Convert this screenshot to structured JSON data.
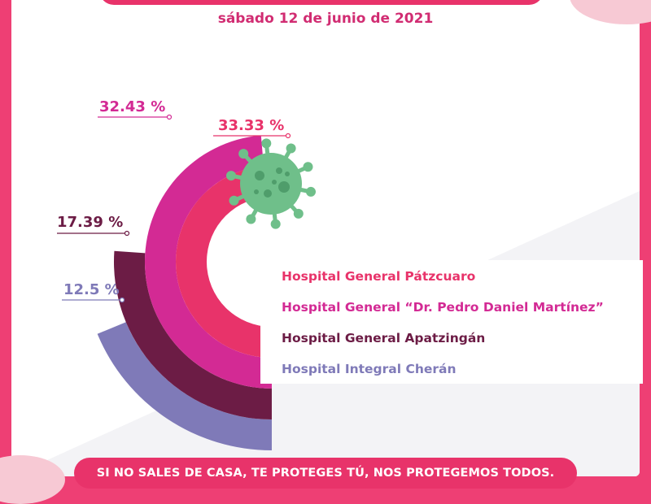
{
  "header": {
    "subtitle": "sábado 12 de junio de 2021"
  },
  "chart_data": {
    "type": "radial-bar",
    "series": [
      {
        "name": "Hospital General Pátzcuaro",
        "value": 33.33,
        "label": "33.33 %",
        "color": "#e8336a"
      },
      {
        "name": "Hospital General “Dr. Pedro Daniel Martínez”",
        "value": 32.43,
        "label": "32.43 %",
        "color": "#d32a94"
      },
      {
        "name": "Hospital General Apatzingán",
        "value": 17.39,
        "label": "17.39 %",
        "color": "#6c1c45"
      },
      {
        "name": "Hospital Integral Cherán",
        "value": 12.5,
        "label": "12.5 %",
        "color": "#7f7ab8"
      }
    ],
    "legend_position": "right",
    "icon": "virus-icon",
    "icon_color": "#6fbf8a"
  },
  "footer": {
    "text": "SI NO SALES DE CASA, TE PROTEGES TÚ, NOS PROTEGEMOS TODOS."
  }
}
